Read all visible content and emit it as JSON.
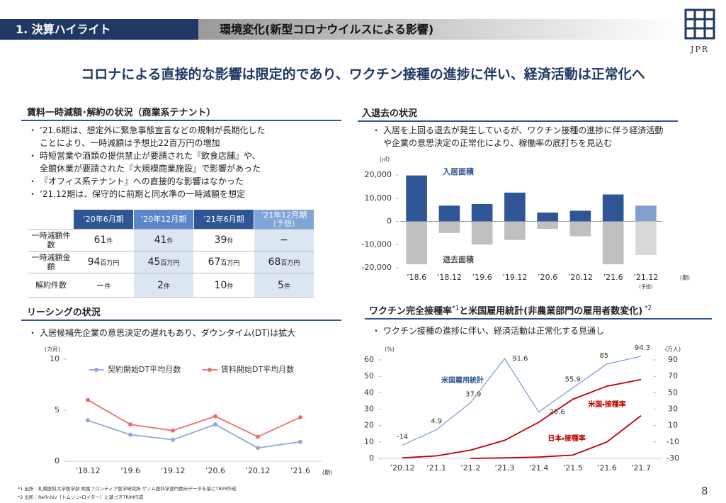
{
  "header": {
    "section": "1. 決算ハイライト",
    "title": "環境変化(新型コロナウイルスによる影響)",
    "logo": "JPR"
  },
  "headline": "コロナによる直接的な影響は限定的であり、ワクチン接種の進捗に伴い、経済活動は正常化へ",
  "rent_section": {
    "title": "賃料一時減額･解約の状況（商業系テナント）",
    "bullets": [
      [
        "’21.6期は、想定外に緊急事態宣言などの規制が長期化した",
        "ことにより、一時減額は予想比22百万円の増加"
      ],
      [
        "時短営業や酒類の提供禁止が要請された『飲食店舗』や、",
        "全館休業が要請された『大規模商業施設』で影響があった"
      ],
      [
        "『オフィス系テナント』への直接的な影響はなかった"
      ],
      [
        "’21.12期は、保守的に前期と同水準の一時減額を想定"
      ]
    ]
  },
  "table": {
    "columns": [
      "’20年6月期",
      "’20年12月期",
      "’21年6月期",
      "’21年12月期"
    ],
    "column_note": "(予想)",
    "rows": [
      {
        "label": "一時減額件数",
        "cells": [
          {
            "value": 61,
            "unit": "件"
          },
          {
            "value": 41,
            "unit": "件"
          },
          {
            "value": 39,
            "unit": "件"
          },
          {
            "value": "−"
          }
        ]
      },
      {
        "label": "一時減額金額",
        "cells": [
          {
            "value": 94,
            "unit": "百万円"
          },
          {
            "value": 45,
            "unit": "百万円"
          },
          {
            "value": 67,
            "unit": "百万円"
          },
          {
            "value": 68,
            "unit": "百万円"
          }
        ]
      },
      {
        "label": "解約件数",
        "cells": [
          {
            "value": "−",
            "unit": "件"
          },
          {
            "value": 2,
            "unit": "件"
          },
          {
            "value": 10,
            "unit": "件"
          },
          {
            "value": 5,
            "unit": "件"
          }
        ]
      }
    ]
  },
  "move_section": {
    "title": "入退去の状況",
    "bullets": [
      [
        "入居を上回る退去が発生しているが、ワクチン接種の進捗に伴う経済活動",
        "や企業の意思決定の正常化により、稼働率の底打ちを見込む"
      ]
    ]
  },
  "leasing_section": {
    "title": "リーシングの状況",
    "bullets": [
      [
        "入居候補先企業の意思決定の遅れもあり、ダウンタイム(DT)は拡大"
      ]
    ]
  },
  "vaccine_section": {
    "title_parts": [
      "ワクチン完全接種率",
      "*1",
      "と米国雇用統計(非農業部門の雇用者数変化)",
      " *2"
    ],
    "bullets": [
      [
        "ワクチン接種の進捗に伴い、経済活動は正常化する見通し"
      ]
    ]
  },
  "chart_data": [
    {
      "type": "bar",
      "y_unit": "(㎡)",
      "x_unit": "(期)",
      "categories": [
        "’18.6",
        "’18.12",
        "’19.6",
        "’19.12",
        "’20.6",
        "’20.12",
        "’21.6",
        "’21.12"
      ],
      "category_sublabels": [
        null,
        null,
        null,
        null,
        null,
        null,
        null,
        "(予想)"
      ],
      "series": [
        {
          "name": "入居面積",
          "colors": [
            "#2f5597",
            "#2f5597",
            "#2f5597",
            "#2f5597",
            "#2f5597",
            "#2f5597",
            "#2f5597",
            "#7f9fcc"
          ],
          "values": [
            19800,
            6800,
            7500,
            12400,
            3800,
            4600,
            11600,
            6800
          ]
        },
        {
          "name": "退去面積",
          "colors": [
            "#bfbfbf",
            "#bfbfbf",
            "#bfbfbf",
            "#bfbfbf",
            "#bfbfbf",
            "#bfbfbf",
            "#bfbfbf",
            "#d9d9d9"
          ],
          "values": [
            -18500,
            -5000,
            -10000,
            -8000,
            -3200,
            -6400,
            -18500,
            -14500
          ]
        }
      ],
      "ylim": [
        -20000,
        20000
      ],
      "yticks": [
        {
          "value": 20000,
          "label": "20,000"
        },
        {
          "value": 10000,
          "label": "10,000"
        },
        0,
        {
          "value": -10000,
          "label": "-10,000"
        },
        {
          "value": -20000,
          "label": "-20,000"
        }
      ]
    },
    {
      "type": "line",
      "y_unit": "(カ月)",
      "x_unit": "(期)",
      "categories": [
        "’18.12",
        "’19.6",
        "’19.12",
        "’20.6",
        "’20.12",
        "’21.6"
      ],
      "series": [
        {
          "name": "契約開始DT平均月数",
          "color": "#8eaadb",
          "values": [
            4.0,
            2.6,
            2.1,
            3.6,
            1.3,
            1.9
          ]
        },
        {
          "name": "賃料開始DT平均月数",
          "color": "#e8716b",
          "values": [
            6.0,
            3.6,
            3.0,
            4.4,
            2.4,
            4.3
          ]
        }
      ],
      "ylim": [
        0,
        10
      ],
      "yticks": [
        0,
        5,
        10
      ],
      "markers": true,
      "legend": "top"
    },
    {
      "type": "line",
      "y_unit": "(%)",
      "y2_unit": "(万人)",
      "categories": [
        "’20.12",
        "’21.1",
        "’21.2",
        "’21.3",
        "’21.4",
        "’21.5",
        "’21.6",
        "’21.7"
      ],
      "series": [
        {
          "name": "米国雇用統計",
          "color": "#7f9fd6",
          "axis": "y2",
          "show_values": true,
          "values": [
            -14,
            4.9,
            37.9,
            91.6,
            26.6,
            55.9,
            85,
            94.3
          ]
        },
        {
          "name": "米国・接種率",
          "color": "#c00000",
          "values": [
            0.3,
            1.5,
            5,
            11,
            22,
            36,
            44,
            48
          ]
        },
        {
          "name": "日本・接種率",
          "color": "#c00000",
          "values": [
            null,
            null,
            0,
            0.3,
            0.8,
            2,
            10,
            26
          ]
        }
      ],
      "ylim": [
        0,
        60
      ],
      "yticks": [
        0,
        10,
        20,
        30,
        40,
        50,
        60
      ],
      "y2lim": [
        -30,
        90
      ],
      "y2ticks": [
        -30,
        -10,
        10,
        30,
        50,
        70,
        90
      ]
    }
  ],
  "footnotes": [
    "*1 出所：札幌医科大学医学部 附属フロンティア医学研究所 ゲノム医科学部門開示データを基にTRIM作成",
    "*2 出所：Refinitiv（トムソン・ロイター）に基づきTRIM作成"
  ],
  "page_number": "8"
}
